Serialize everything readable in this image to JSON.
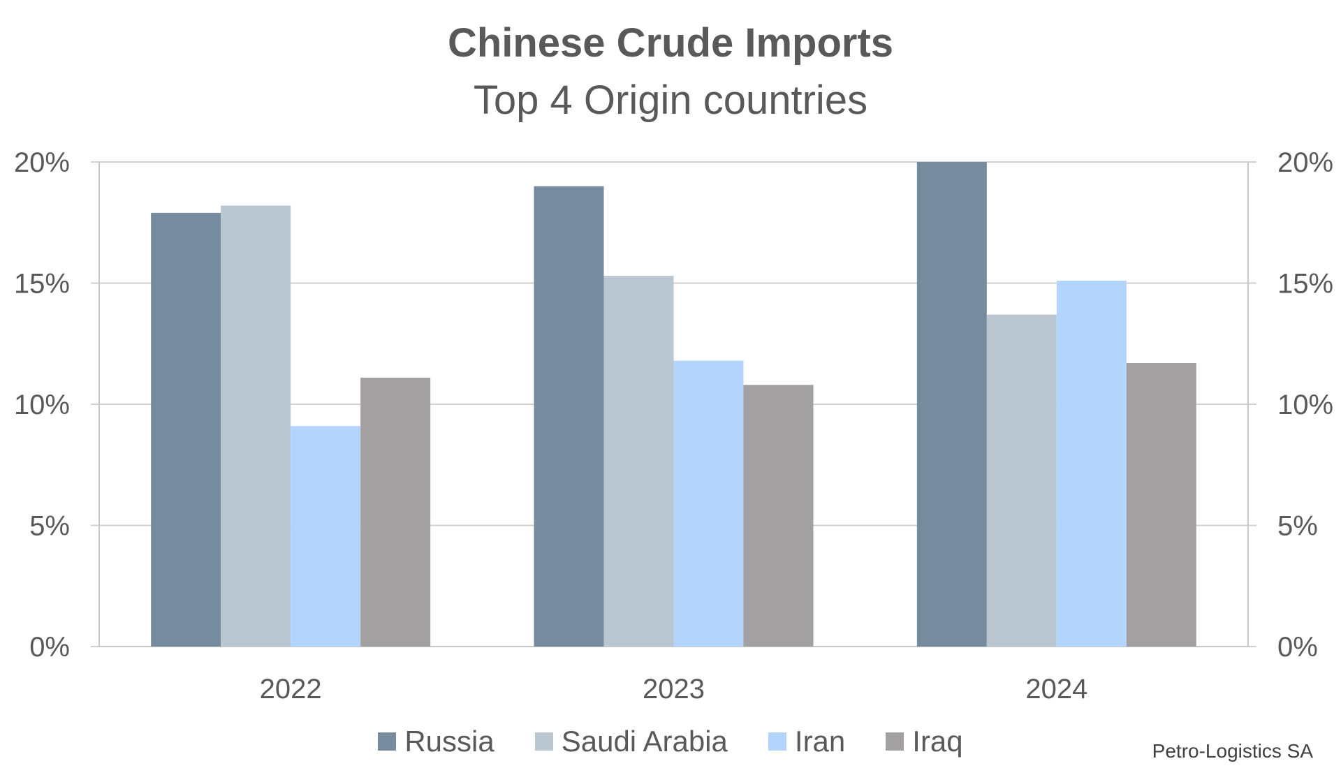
{
  "chart_data": {
    "type": "bar",
    "title": "Chinese Crude Imports",
    "subtitle": "Top 4 Origin countries",
    "categories": [
      "2022",
      "2023",
      "2024"
    ],
    "series": [
      {
        "name": "Russia",
        "color": "#768b9e",
        "values": [
          17.9,
          19.0,
          20.0
        ]
      },
      {
        "name": "Saudi Arabia",
        "color": "#bac7d1",
        "values": [
          18.2,
          15.3,
          13.7
        ]
      },
      {
        "name": "Iran",
        "color": "#b3d4fc",
        "values": [
          9.1,
          11.8,
          15.1
        ]
      },
      {
        "name": "Iraq",
        "color": "#a2a0a1",
        "values": [
          11.1,
          10.8,
          11.7
        ]
      }
    ],
    "ylim": [
      0,
      20
    ],
    "yticks": [
      "0%",
      "5%",
      "10%",
      "15%",
      "20%"
    ],
    "ytick_values": [
      0,
      5,
      10,
      15,
      20
    ],
    "secondary_axis": true,
    "grid": true,
    "legend_position": "bottom"
  },
  "source_note": "Petro-Logistics SA"
}
